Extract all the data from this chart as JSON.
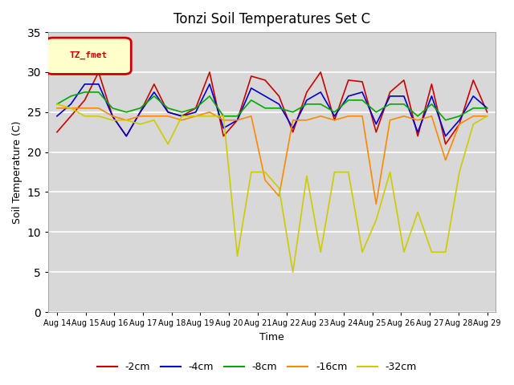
{
  "title": "Tonzi Soil Temperatures Set C",
  "xlabel": "Time",
  "ylabel": "Soil Temperature (C)",
  "ylim": [
    0,
    35
  ],
  "yticks": [
    0,
    5,
    10,
    15,
    20,
    25,
    30,
    35
  ],
  "plot_bg_color": "#d8d8d8",
  "series_labels": [
    "-2cm",
    "-4cm",
    "-8cm",
    "-16cm",
    "-32cm"
  ],
  "series_colors": [
    "#cc0000",
    "#0000cc",
    "#00aa00",
    "#ff8800",
    "#cccc00"
  ],
  "x_tick_labels": [
    "Aug 14",
    "Aug 15",
    "Aug 16",
    "Aug 17",
    "Aug 18",
    "Aug 19",
    "Aug 20",
    "Aug 21",
    "Aug 22",
    "Aug 23",
    "Aug 24",
    "Aug 25",
    "Aug 26",
    "Aug 27",
    "Aug 28",
    "Aug 29"
  ],
  "m2cm": [
    22.5,
    24.5,
    26.5,
    30.0,
    24.5,
    22.0,
    25.0,
    28.5,
    25.0,
    24.5,
    25.5,
    30.0,
    22.0,
    24.0,
    29.5,
    29.0,
    27.0,
    22.5,
    27.5,
    30.0,
    24.0,
    29.0,
    28.8,
    22.5,
    27.5,
    29.0,
    22.0,
    28.5,
    21.0,
    23.5,
    29.0,
    25.0
  ],
  "m4cm": [
    24.5,
    26.0,
    28.5,
    28.5,
    24.5,
    22.0,
    25.0,
    27.5,
    25.0,
    24.5,
    25.0,
    28.5,
    23.0,
    24.0,
    28.0,
    27.0,
    26.0,
    23.0,
    26.5,
    27.5,
    24.5,
    27.0,
    27.5,
    23.5,
    27.0,
    27.0,
    22.5,
    27.0,
    22.0,
    24.0,
    27.0,
    25.5
  ],
  "m8cm": [
    26.0,
    27.0,
    27.5,
    27.5,
    25.5,
    25.0,
    25.5,
    27.0,
    25.5,
    25.0,
    25.5,
    27.0,
    24.5,
    24.5,
    26.5,
    25.5,
    25.5,
    25.0,
    26.0,
    26.0,
    25.0,
    26.5,
    26.5,
    25.0,
    26.0,
    26.0,
    24.5,
    26.0,
    24.0,
    24.5,
    25.5,
    25.5
  ],
  "m16cm": [
    25.5,
    25.5,
    25.5,
    25.5,
    24.5,
    24.0,
    24.5,
    24.5,
    24.5,
    24.0,
    24.5,
    25.0,
    24.0,
    24.0,
    24.5,
    16.5,
    14.5,
    24.0,
    24.0,
    24.5,
    24.0,
    24.5,
    24.5,
    13.5,
    24.0,
    24.5,
    24.0,
    24.5,
    19.0,
    23.5,
    24.5,
    24.5
  ],
  "m32cm": [
    26.0,
    25.5,
    24.5,
    24.5,
    24.0,
    24.0,
    23.5,
    24.0,
    21.0,
    24.5,
    24.5,
    24.5,
    24.5,
    7.0,
    17.5,
    17.5,
    15.5,
    5.0,
    17.0,
    7.5,
    17.5,
    17.5,
    7.5,
    11.5,
    17.5,
    7.5,
    12.5,
    7.5,
    7.5,
    17.5,
    23.5,
    24.5
  ]
}
